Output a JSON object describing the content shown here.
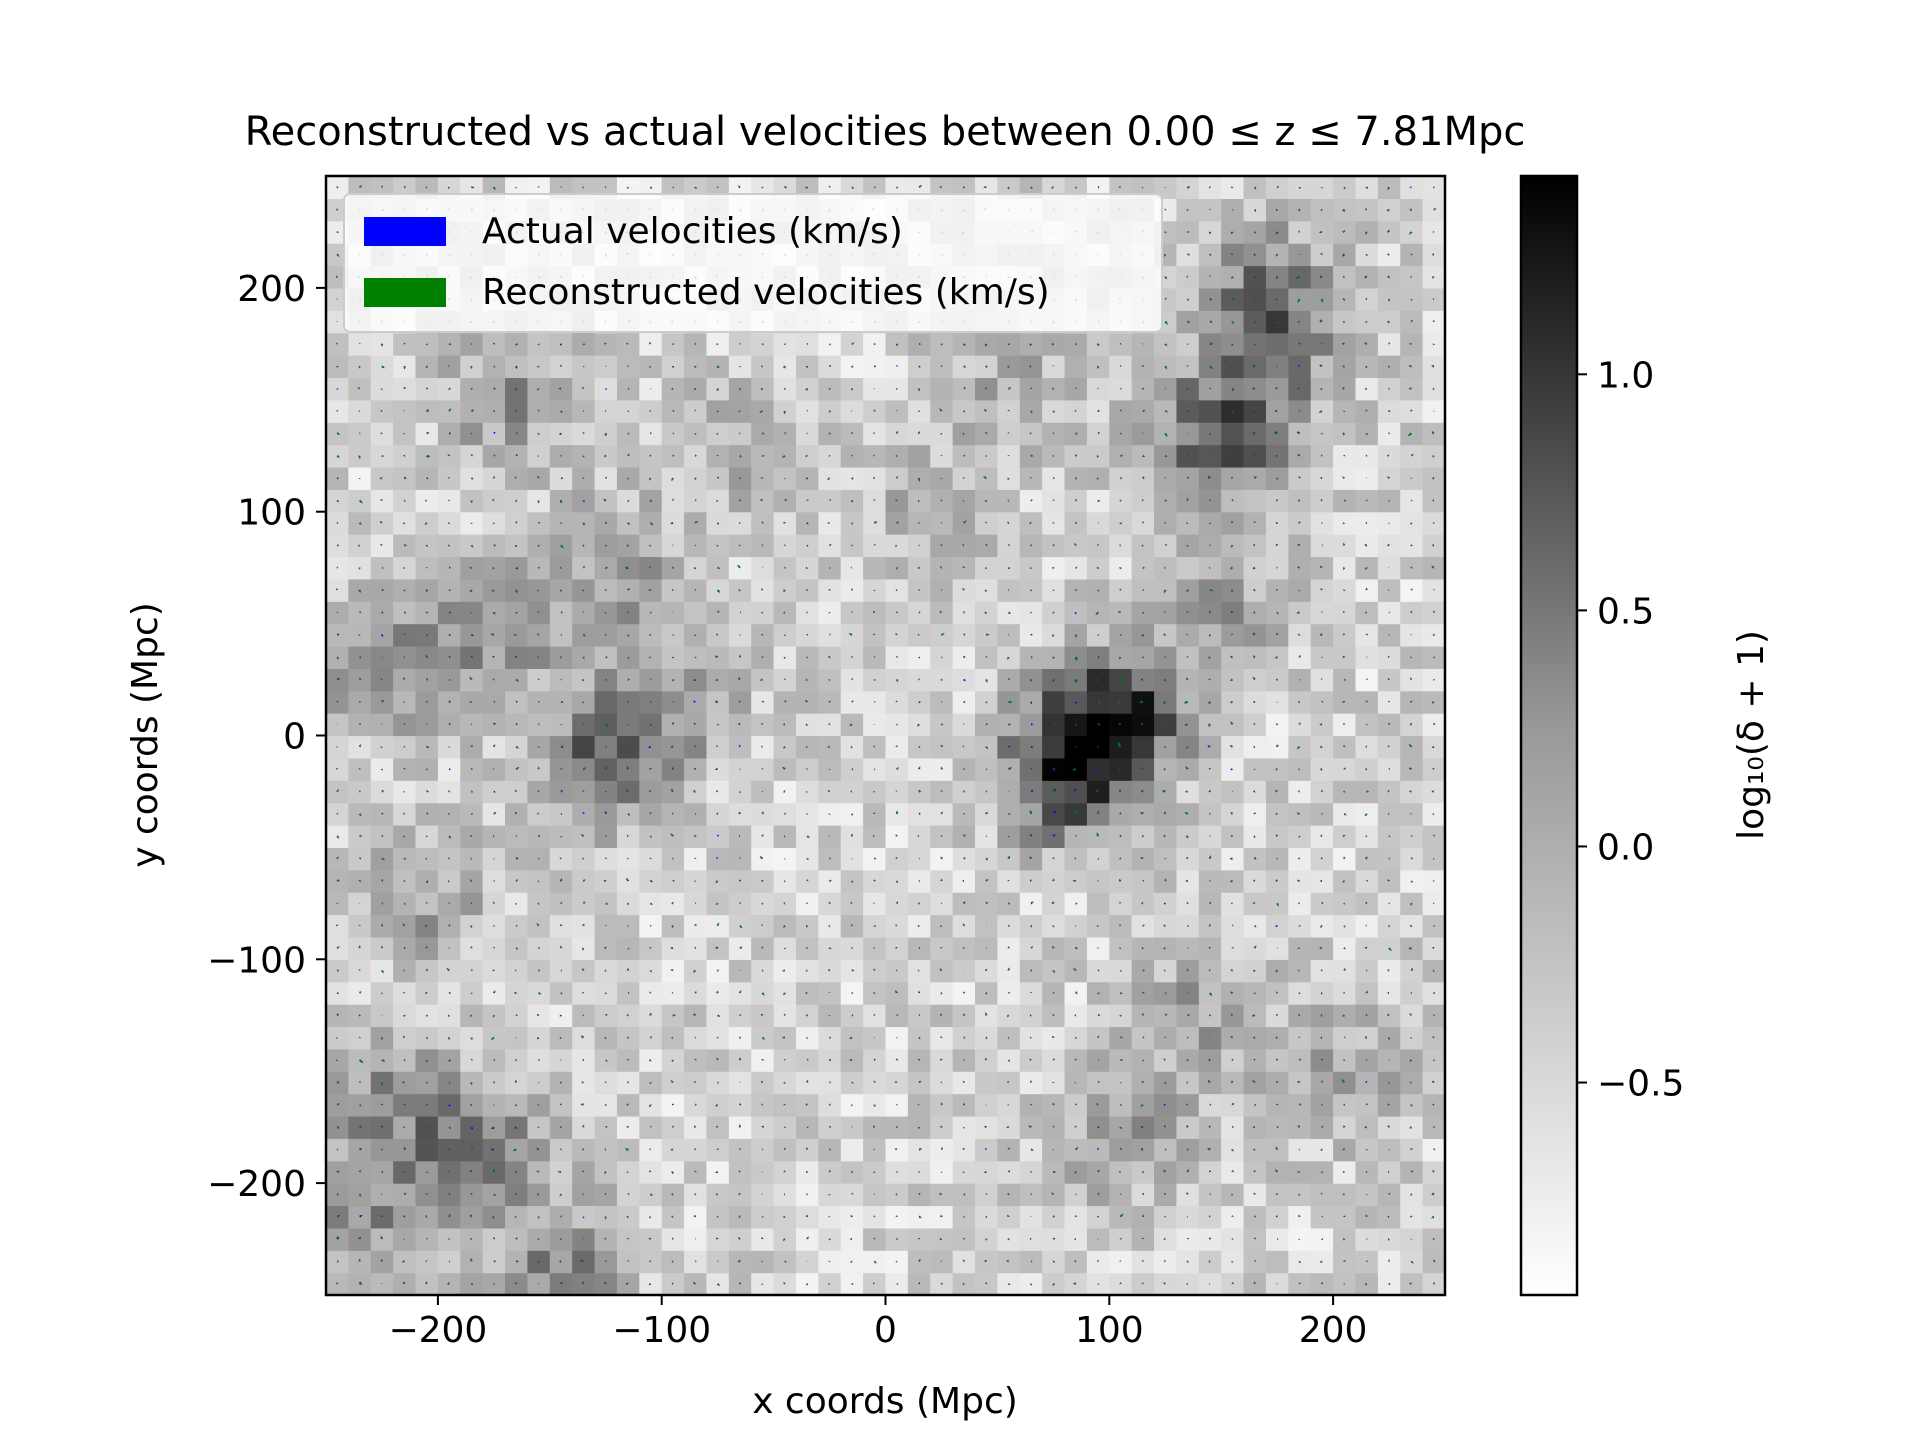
{
  "chart_data": {
    "type": "heatmap",
    "overlay": "quiver",
    "title": "Reconstructed vs actual velocities between 0.00 ≤ z ≤ 7.81Mpc",
    "xlabel": "x coords (Mpc)",
    "ylabel": "y coords (Mpc)",
    "xlim": [
      -250,
      250
    ],
    "ylim": [
      -250,
      250
    ],
    "xticks": [
      -200,
      -100,
      0,
      100,
      200
    ],
    "yticks": [
      -200,
      -100,
      0,
      100,
      200
    ],
    "xtick_labels": [
      "−200",
      "−100",
      "0",
      "100",
      "200"
    ],
    "ytick_labels": [
      "−200",
      "−100",
      "0",
      "100",
      "200"
    ],
    "grid": false,
    "colormap": "Greys",
    "colorbar": {
      "label": "log₁₀(δ + 1)",
      "range": [
        -0.95,
        1.42
      ],
      "ticks": [
        -0.5,
        0.0,
        0.5,
        1.0
      ],
      "tick_labels": [
        "−0.5",
        "0.0",
        "0.5",
        "1.0"
      ]
    },
    "grid_cells": 50,
    "quiver_spacing_mpc": 10,
    "legend": {
      "placement": "upper-left",
      "entries": [
        {
          "label": "Actual velocities (km/s)",
          "color": "#0000ff"
        },
        {
          "label": "Reconstructed velocities (km/s)",
          "color": "#008000"
        }
      ]
    },
    "series": [
      {
        "name": "Actual velocities (km/s)",
        "color": "#0000ff"
      },
      {
        "name": "Reconstructed velocities (km/s)",
        "color": "#008000"
      }
    ],
    "density_peaks": [
      {
        "x": 105,
        "y": 10,
        "strength": 1.4
      },
      {
        "x": 80,
        "y": -18,
        "strength": 1.3
      },
      {
        "x": -125,
        "y": -10,
        "strength": 1.0
      },
      {
        "x": -178,
        "y": 45,
        "strength": 0.7
      },
      {
        "x": -228,
        "y": 28,
        "strength": 0.6
      },
      {
        "x": -120,
        "y": 75,
        "strength": 0.6
      },
      {
        "x": -168,
        "y": 150,
        "strength": 0.6
      },
      {
        "x": 160,
        "y": 145,
        "strength": 0.8
      },
      {
        "x": 140,
        "y": 125,
        "strength": 0.6
      },
      {
        "x": 150,
        "y": 60,
        "strength": 0.5
      },
      {
        "x": 180,
        "y": 185,
        "strength": 0.6
      },
      {
        "x": 165,
        "y": 205,
        "strength": 0.5
      },
      {
        "x": -225,
        "y": -160,
        "strength": 0.6
      },
      {
        "x": -183,
        "y": -183,
        "strength": 0.8
      },
      {
        "x": -230,
        "y": -215,
        "strength": 0.6
      },
      {
        "x": -145,
        "y": -238,
        "strength": 0.8
      },
      {
        "x": 105,
        "y": -178,
        "strength": 0.6
      },
      {
        "x": 140,
        "y": -125,
        "strength": 0.5
      },
      {
        "x": 205,
        "y": -150,
        "strength": 0.5
      },
      {
        "x": -205,
        "y": -75,
        "strength": 0.5
      },
      {
        "x": 20,
        "y": 100,
        "strength": 0.4
      },
      {
        "x": 55,
        "y": 160,
        "strength": 0.4
      },
      {
        "x": -65,
        "y": 130,
        "strength": 0.4
      },
      {
        "x": -90,
        "y": 20,
        "strength": 0.5
      }
    ]
  }
}
